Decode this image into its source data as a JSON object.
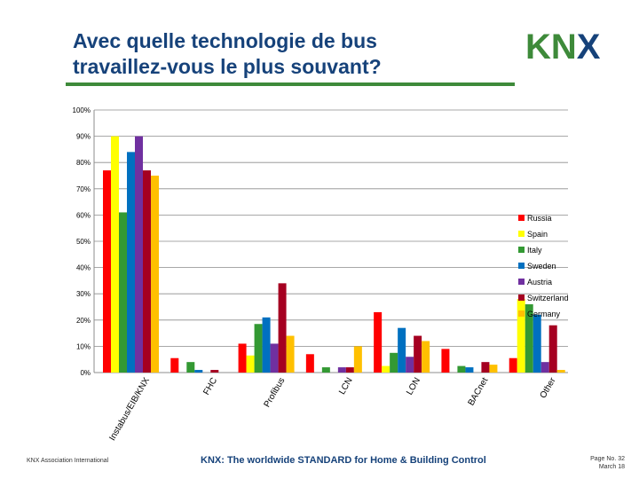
{
  "slide": {
    "title_line1": "Avec quelle technologie de bus",
    "title_line2": "travaillez-vous le plus souvant?",
    "footer_left": "KNX Association International",
    "footer_center": "KNX: The worldwide STANDARD for Home & Building Control",
    "page_label": "Page No. 32",
    "date_label": "March 18"
  },
  "logo": {
    "text": "KNX",
    "color": "#3e8a3a",
    "x_color": "#16427a"
  },
  "chart_data": {
    "type": "bar",
    "categories": [
      "Instabus/EIB/KNX",
      "FHC",
      "Profibus",
      "LCN",
      "LON",
      "BACnet",
      "Other"
    ],
    "ylim": [
      0,
      100
    ],
    "yticks": [
      0,
      10,
      20,
      30,
      40,
      50,
      60,
      70,
      80,
      90,
      100
    ],
    "ytick_labels": [
      "0%",
      "10%",
      "20%",
      "30%",
      "40%",
      "50%",
      "60%",
      "70%",
      "80%",
      "90%",
      "100%"
    ],
    "grid": true,
    "legend_position": "right",
    "series": [
      {
        "name": "Russia",
        "color": "#ff0000",
        "values": [
          77,
          5.5,
          11,
          7,
          23,
          9,
          5.5
        ]
      },
      {
        "name": "Spain",
        "color": "#ffff00",
        "values": [
          90,
          0,
          6.5,
          0,
          2.5,
          0,
          28
        ]
      },
      {
        "name": "Italy",
        "color": "#339933",
        "values": [
          61,
          4,
          18.5,
          2,
          7.5,
          2.5,
          26
        ]
      },
      {
        "name": "Sweden",
        "color": "#0070c0",
        "values": [
          84,
          1,
          21,
          0,
          17,
          2,
          22
        ]
      },
      {
        "name": "Austria",
        "color": "#7030a0",
        "values": [
          90,
          0,
          11,
          2,
          6,
          0,
          4
        ]
      },
      {
        "name": "Switzerland",
        "color": "#a50021",
        "values": [
          77,
          1,
          34,
          2,
          14,
          4,
          18
        ]
      },
      {
        "name": "Germany",
        "color": "#ffc000",
        "values": [
          75,
          0,
          14,
          10,
          12,
          3,
          1
        ]
      }
    ]
  }
}
